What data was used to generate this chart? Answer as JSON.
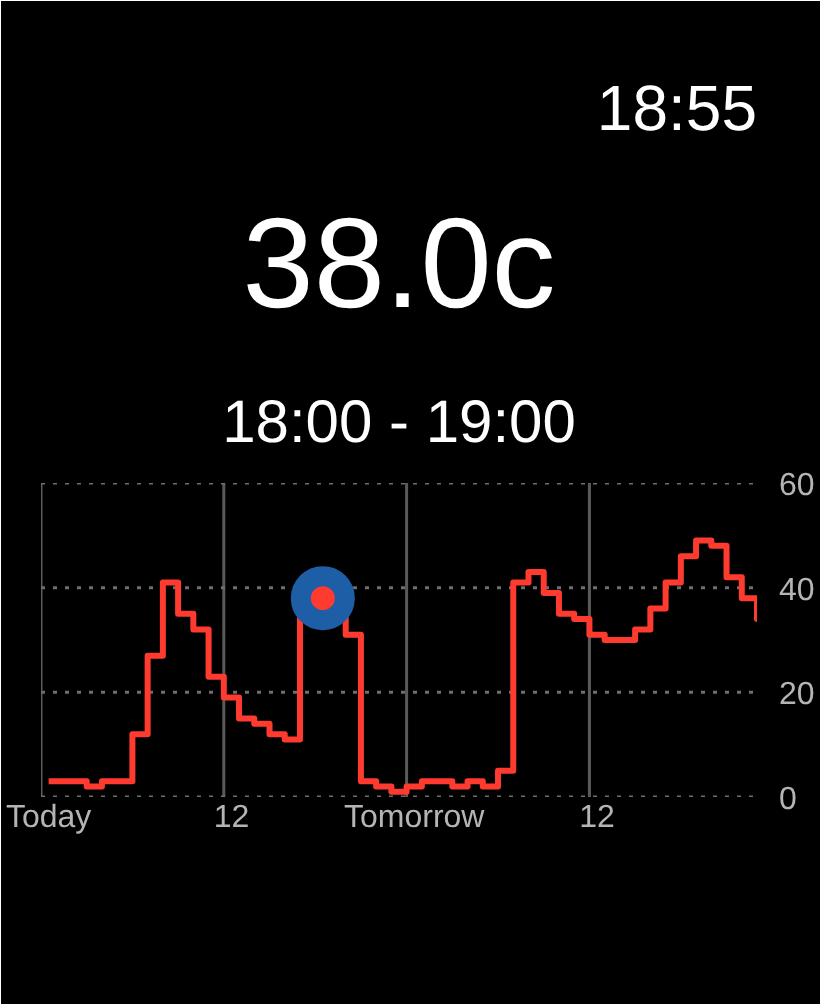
{
  "chart_data": {
    "type": "step",
    "title": "38.0c",
    "subtitle": "18:00 - 19:00",
    "annotations": [
      "18:55"
    ],
    "categories": [
      "Today",
      null,
      null,
      null,
      null,
      null,
      null,
      null,
      null,
      null,
      null,
      null,
      "12",
      null,
      null,
      null,
      null,
      null,
      null,
      null,
      null,
      null,
      null,
      null,
      "Tomorrow",
      null,
      null,
      null,
      null,
      null,
      null,
      null,
      null,
      null,
      null,
      null,
      "12",
      null,
      null,
      null,
      null,
      null,
      null,
      null,
      null,
      null,
      null,
      null
    ],
    "ylim": [
      0,
      60
    ],
    "yticks": [
      0,
      20,
      40,
      60
    ],
    "series": [
      {
        "color": "#ff3b30",
        "values": [
          3,
          3,
          3,
          2,
          3,
          3,
          12,
          27,
          41,
          35,
          32,
          23,
          19,
          15,
          14,
          12,
          11,
          34,
          38,
          36,
          31,
          3,
          2,
          1,
          2,
          3,
          3,
          2,
          3,
          2,
          5,
          41,
          43,
          39,
          35,
          34,
          31,
          30,
          30,
          32,
          36,
          41,
          46,
          49,
          48,
          42,
          38,
          34
        ]
      },
      {
        "type": "scatter",
        "color": "#ff3b30",
        "marker": "circle",
        "values": [
          null,
          null,
          null,
          null,
          null,
          null,
          null,
          null,
          null,
          null,
          null,
          null,
          null,
          null,
          null,
          null,
          null,
          null,
          38,
          null,
          null,
          null,
          null,
          null,
          null,
          null,
          null,
          null,
          null,
          null,
          null,
          null,
          null,
          null,
          null,
          null,
          null,
          null,
          null,
          null,
          null,
          null,
          null,
          null,
          null,
          null,
          null,
          null
        ]
      }
    ],
    "grid": true,
    "line_style": "solid"
  }
}
